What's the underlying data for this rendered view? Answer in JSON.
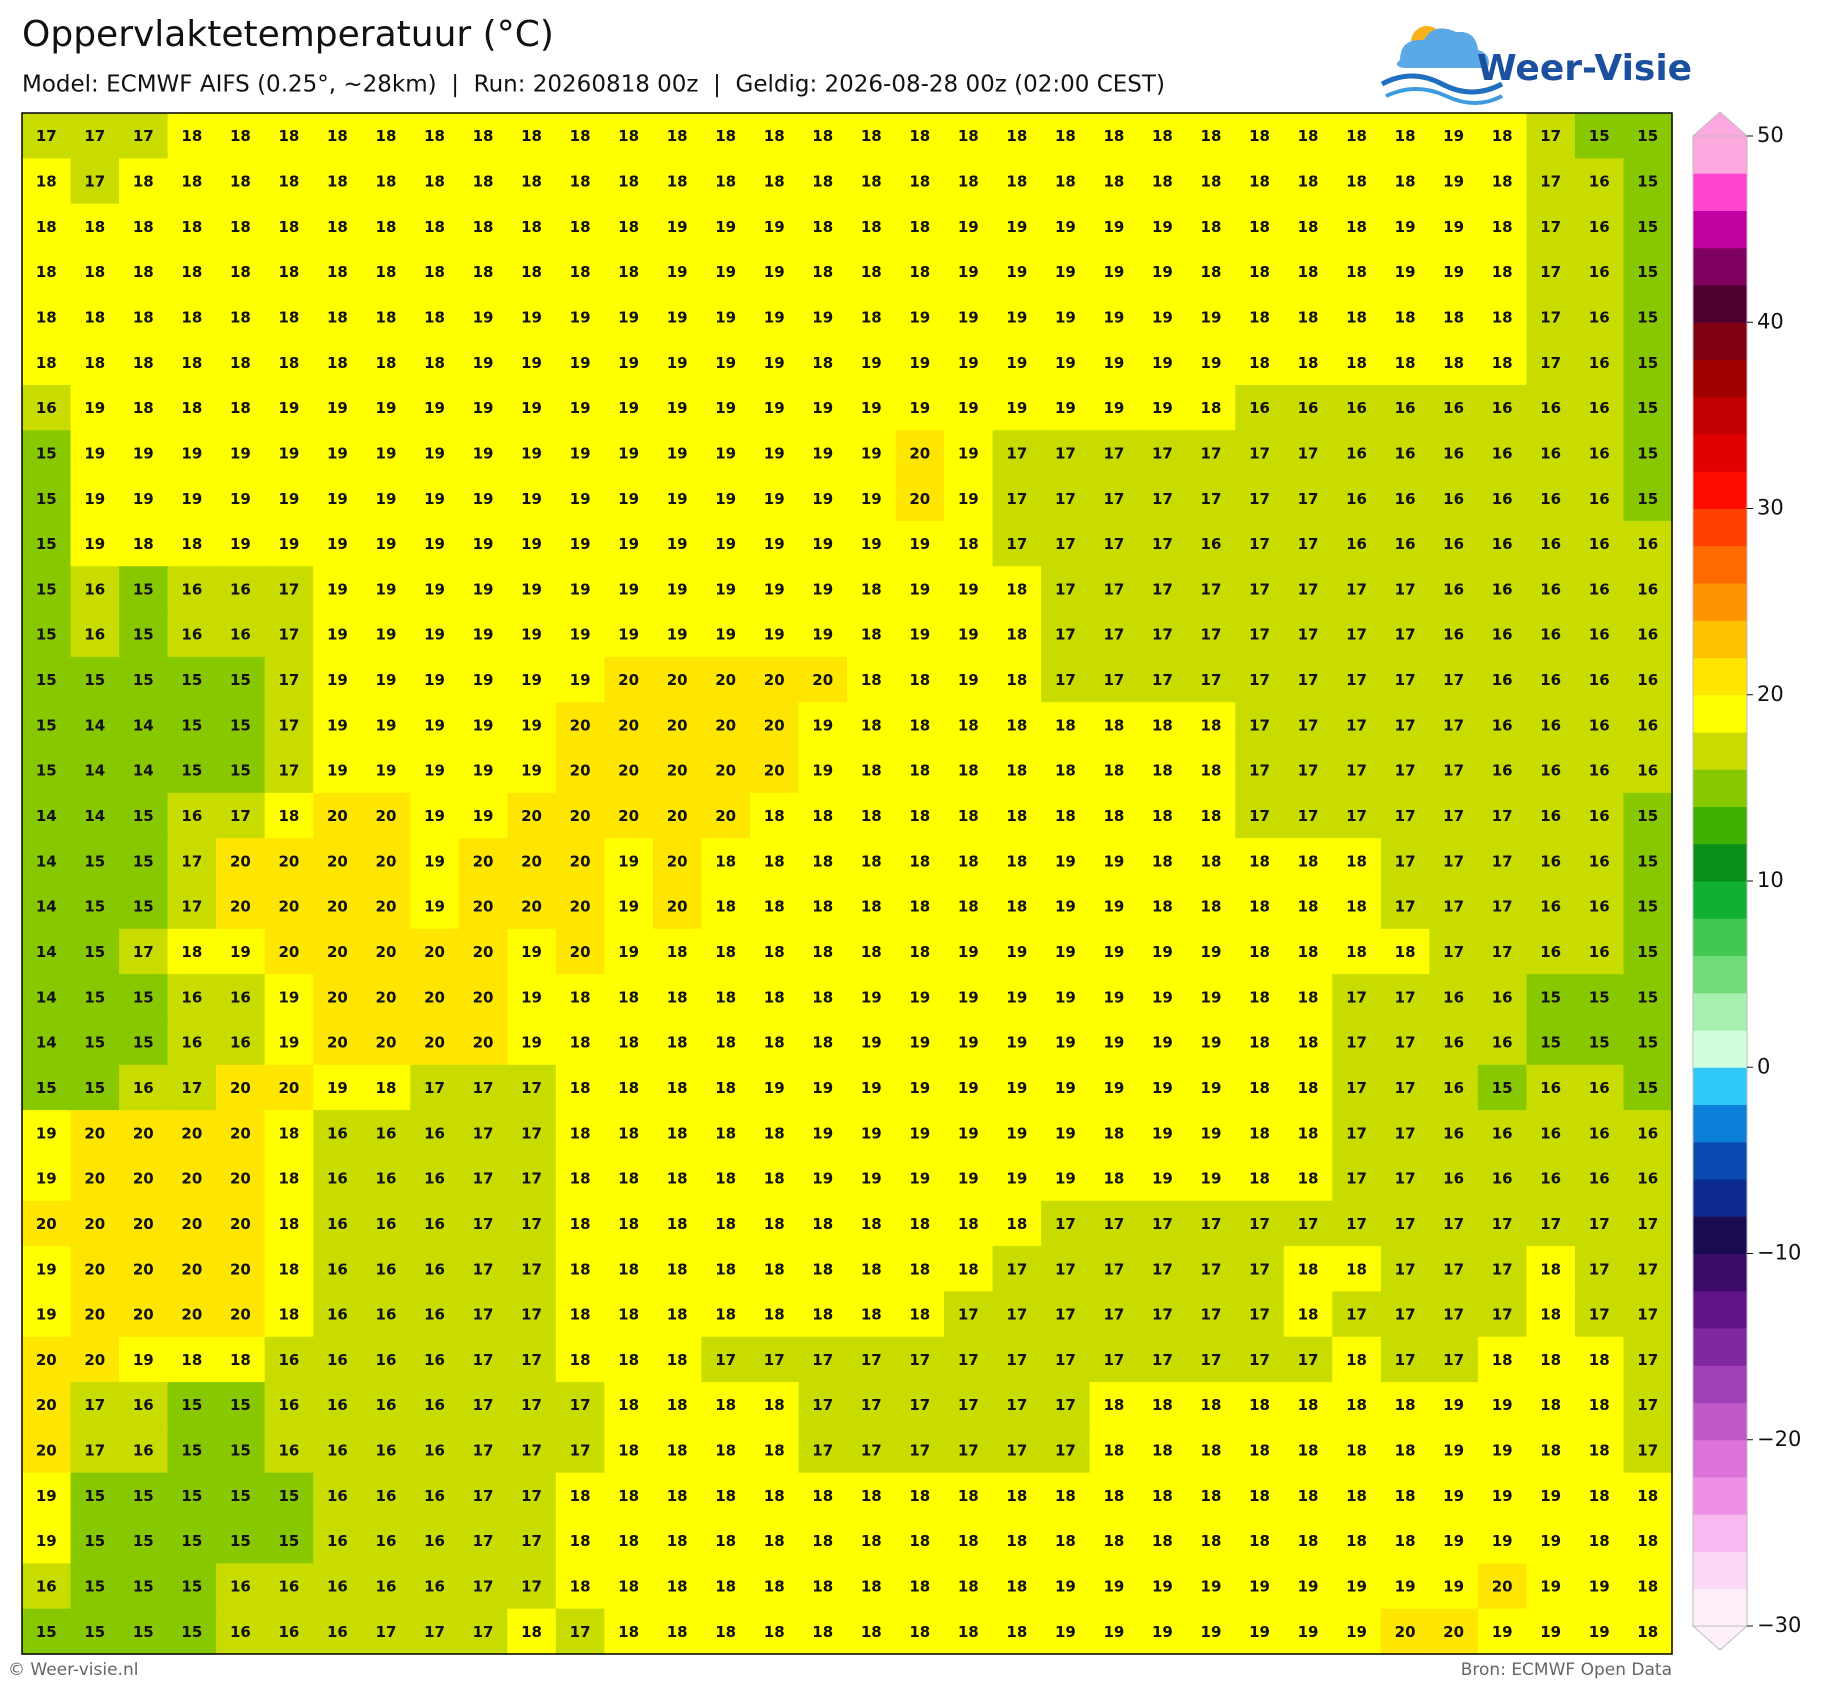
{
  "chart_data": {
    "type": "grid",
    "title": "Oppervlaktetemperatuur (°C)",
    "subtitle": "Model: ECMWF AIFS (0.25°, ~28km)  |  Run: 20260818 00z  |  Geldig: 2026-08-28 00z (02:00 CEST)",
    "logo_text": "Weer-Visie",
    "footer_left": "© Weer-visie.nl",
    "footer_right": "Bron: ECMWF Open Data",
    "rows": [
      [
        17,
        17,
        17,
        18,
        18,
        18,
        18,
        18,
        18,
        18,
        18,
        18,
        18,
        18,
        18,
        18,
        18,
        18,
        18,
        18,
        18,
        18,
        18,
        18,
        18,
        18,
        18,
        18,
        18,
        19,
        18,
        17,
        15,
        15
      ],
      [
        18,
        17,
        18,
        18,
        18,
        18,
        18,
        18,
        18,
        18,
        18,
        18,
        18,
        18,
        18,
        18,
        18,
        18,
        18,
        18,
        18,
        18,
        18,
        18,
        18,
        18,
        18,
        18,
        18,
        19,
        18,
        17,
        16,
        15
      ],
      [
        18,
        18,
        18,
        18,
        18,
        18,
        18,
        18,
        18,
        18,
        18,
        18,
        18,
        19,
        19,
        19,
        18,
        18,
        18,
        19,
        19,
        19,
        19,
        19,
        18,
        18,
        18,
        18,
        19,
        19,
        18,
        17,
        16,
        15
      ],
      [
        18,
        18,
        18,
        18,
        18,
        18,
        18,
        18,
        18,
        18,
        18,
        18,
        18,
        19,
        19,
        19,
        18,
        18,
        18,
        19,
        19,
        19,
        19,
        19,
        18,
        18,
        18,
        18,
        19,
        19,
        18,
        17,
        16,
        15
      ],
      [
        18,
        18,
        18,
        18,
        18,
        18,
        18,
        18,
        18,
        19,
        19,
        19,
        19,
        19,
        19,
        19,
        19,
        18,
        19,
        19,
        19,
        19,
        19,
        19,
        19,
        18,
        18,
        18,
        18,
        18,
        18,
        17,
        16,
        15
      ],
      [
        18,
        18,
        18,
        18,
        18,
        18,
        18,
        18,
        18,
        19,
        19,
        19,
        19,
        19,
        19,
        19,
        18,
        19,
        19,
        19,
        19,
        19,
        19,
        19,
        19,
        18,
        18,
        18,
        18,
        18,
        18,
        17,
        16,
        15
      ],
      [
        16,
        19,
        18,
        18,
        18,
        19,
        19,
        19,
        19,
        19,
        19,
        19,
        19,
        19,
        19,
        19,
        19,
        19,
        19,
        19,
        19,
        19,
        19,
        19,
        18,
        16,
        16,
        16,
        16,
        16,
        16,
        16,
        16,
        15
      ],
      [
        15,
        19,
        19,
        19,
        19,
        19,
        19,
        19,
        19,
        19,
        19,
        19,
        19,
        19,
        19,
        19,
        19,
        19,
        20,
        19,
        17,
        17,
        17,
        17,
        17,
        17,
        17,
        16,
        16,
        16,
        16,
        16,
        16,
        15
      ],
      [
        15,
        19,
        19,
        19,
        19,
        19,
        19,
        19,
        19,
        19,
        19,
        19,
        19,
        19,
        19,
        19,
        19,
        19,
        20,
        19,
        17,
        17,
        17,
        17,
        17,
        17,
        17,
        16,
        16,
        16,
        16,
        16,
        16,
        15
      ],
      [
        15,
        19,
        18,
        18,
        19,
        19,
        19,
        19,
        19,
        19,
        19,
        19,
        19,
        19,
        19,
        19,
        19,
        19,
        19,
        18,
        17,
        17,
        17,
        17,
        16,
        17,
        17,
        16,
        16,
        16,
        16,
        16,
        16,
        16
      ],
      [
        15,
        16,
        15,
        16,
        16,
        17,
        19,
        19,
        19,
        19,
        19,
        19,
        19,
        19,
        19,
        19,
        19,
        18,
        19,
        19,
        18,
        17,
        17,
        17,
        17,
        17,
        17,
        17,
        17,
        16,
        16,
        16,
        16,
        16
      ],
      [
        15,
        16,
        15,
        16,
        16,
        17,
        19,
        19,
        19,
        19,
        19,
        19,
        19,
        19,
        19,
        19,
        19,
        18,
        19,
        19,
        18,
        17,
        17,
        17,
        17,
        17,
        17,
        17,
        17,
        16,
        16,
        16,
        16,
        16
      ],
      [
        15,
        15,
        15,
        15,
        15,
        17,
        19,
        19,
        19,
        19,
        19,
        19,
        20,
        20,
        20,
        20,
        20,
        18,
        18,
        19,
        18,
        17,
        17,
        17,
        17,
        17,
        17,
        17,
        17,
        17,
        16,
        16,
        16,
        16
      ],
      [
        15,
        14,
        14,
        15,
        15,
        17,
        19,
        19,
        19,
        19,
        19,
        20,
        20,
        20,
        20,
        20,
        19,
        18,
        18,
        18,
        18,
        18,
        18,
        18,
        18,
        17,
        17,
        17,
        17,
        17,
        16,
        16,
        16,
        16
      ],
      [
        15,
        14,
        14,
        15,
        15,
        17,
        19,
        19,
        19,
        19,
        19,
        20,
        20,
        20,
        20,
        20,
        19,
        18,
        18,
        18,
        18,
        18,
        18,
        18,
        18,
        17,
        17,
        17,
        17,
        17,
        16,
        16,
        16,
        16
      ],
      [
        14,
        14,
        15,
        16,
        17,
        18,
        20,
        20,
        19,
        19,
        20,
        20,
        20,
        20,
        20,
        18,
        18,
        18,
        18,
        18,
        18,
        18,
        18,
        18,
        18,
        17,
        17,
        17,
        17,
        17,
        17,
        16,
        16,
        15
      ],
      [
        14,
        15,
        15,
        17,
        20,
        20,
        20,
        20,
        19,
        20,
        20,
        20,
        19,
        20,
        18,
        18,
        18,
        18,
        18,
        18,
        18,
        19,
        19,
        18,
        18,
        18,
        18,
        18,
        17,
        17,
        17,
        16,
        16,
        15
      ],
      [
        14,
        15,
        15,
        17,
        20,
        20,
        20,
        20,
        19,
        20,
        20,
        20,
        19,
        20,
        18,
        18,
        18,
        18,
        18,
        18,
        18,
        19,
        19,
        18,
        18,
        18,
        18,
        18,
        17,
        17,
        17,
        16,
        16,
        15
      ],
      [
        14,
        15,
        17,
        18,
        19,
        20,
        20,
        20,
        20,
        20,
        19,
        20,
        19,
        18,
        18,
        18,
        18,
        18,
        18,
        19,
        19,
        19,
        19,
        19,
        19,
        18,
        18,
        18,
        18,
        17,
        17,
        16,
        16,
        15
      ],
      [
        14,
        15,
        15,
        16,
        16,
        19,
        20,
        20,
        20,
        20,
        19,
        18,
        18,
        18,
        18,
        18,
        18,
        19,
        19,
        19,
        19,
        19,
        19,
        19,
        19,
        18,
        18,
        17,
        17,
        16,
        16,
        15,
        15,
        15
      ],
      [
        14,
        15,
        15,
        16,
        16,
        19,
        20,
        20,
        20,
        20,
        19,
        18,
        18,
        18,
        18,
        18,
        18,
        19,
        19,
        19,
        19,
        19,
        19,
        19,
        19,
        18,
        18,
        17,
        17,
        16,
        16,
        15,
        15,
        15
      ],
      [
        15,
        15,
        16,
        17,
        20,
        20,
        19,
        18,
        17,
        17,
        17,
        18,
        18,
        18,
        18,
        19,
        19,
        19,
        19,
        19,
        19,
        19,
        19,
        19,
        19,
        18,
        18,
        17,
        17,
        16,
        15,
        16,
        16,
        15
      ],
      [
        19,
        20,
        20,
        20,
        20,
        18,
        16,
        16,
        16,
        17,
        17,
        18,
        18,
        18,
        18,
        18,
        19,
        19,
        19,
        19,
        19,
        19,
        18,
        19,
        19,
        18,
        18,
        17,
        17,
        16,
        16,
        16,
        16,
        16
      ],
      [
        19,
        20,
        20,
        20,
        20,
        18,
        16,
        16,
        16,
        17,
        17,
        18,
        18,
        18,
        18,
        18,
        19,
        19,
        19,
        19,
        19,
        19,
        18,
        19,
        19,
        18,
        18,
        17,
        17,
        16,
        16,
        16,
        16,
        16
      ],
      [
        20,
        20,
        20,
        20,
        20,
        18,
        16,
        16,
        16,
        17,
        17,
        18,
        18,
        18,
        18,
        18,
        18,
        18,
        18,
        18,
        18,
        17,
        17,
        17,
        17,
        17,
        17,
        17,
        17,
        17,
        17,
        17,
        17,
        17
      ],
      [
        19,
        20,
        20,
        20,
        20,
        18,
        16,
        16,
        16,
        17,
        17,
        18,
        18,
        18,
        18,
        18,
        18,
        18,
        18,
        18,
        17,
        17,
        17,
        17,
        17,
        17,
        18,
        18,
        17,
        17,
        17,
        18,
        17,
        17
      ],
      [
        19,
        20,
        20,
        20,
        20,
        18,
        16,
        16,
        16,
        17,
        17,
        18,
        18,
        18,
        18,
        18,
        18,
        18,
        18,
        17,
        17,
        17,
        17,
        17,
        17,
        17,
        18,
        17,
        17,
        17,
        17,
        18,
        17,
        17
      ],
      [
        20,
        20,
        19,
        18,
        18,
        16,
        16,
        16,
        16,
        17,
        17,
        18,
        18,
        18,
        17,
        17,
        17,
        17,
        17,
        17,
        17,
        17,
        17,
        17,
        17,
        17,
        17,
        18,
        17,
        17,
        18,
        18,
        18,
        17
      ],
      [
        20,
        17,
        16,
        15,
        15,
        16,
        16,
        16,
        16,
        17,
        17,
        17,
        18,
        18,
        18,
        18,
        17,
        17,
        17,
        17,
        17,
        17,
        18,
        18,
        18,
        18,
        18,
        18,
        18,
        19,
        19,
        18,
        18,
        17
      ],
      [
        20,
        17,
        16,
        15,
        15,
        16,
        16,
        16,
        16,
        17,
        17,
        17,
        18,
        18,
        18,
        18,
        17,
        17,
        17,
        17,
        17,
        17,
        18,
        18,
        18,
        18,
        18,
        18,
        18,
        19,
        19,
        18,
        18,
        17
      ],
      [
        19,
        15,
        15,
        15,
        15,
        15,
        16,
        16,
        16,
        17,
        17,
        18,
        18,
        18,
        18,
        18,
        18,
        18,
        18,
        18,
        18,
        18,
        18,
        18,
        18,
        18,
        18,
        18,
        18,
        19,
        19,
        19,
        18,
        18
      ],
      [
        19,
        15,
        15,
        15,
        15,
        15,
        16,
        16,
        16,
        17,
        17,
        18,
        18,
        18,
        18,
        18,
        18,
        18,
        18,
        18,
        18,
        18,
        18,
        18,
        18,
        18,
        18,
        18,
        18,
        19,
        19,
        19,
        18,
        18
      ],
      [
        16,
        15,
        15,
        15,
        16,
        16,
        16,
        16,
        16,
        17,
        17,
        18,
        18,
        18,
        18,
        18,
        18,
        18,
        18,
        18,
        18,
        19,
        19,
        19,
        19,
        19,
        19,
        19,
        19,
        19,
        20,
        19,
        19,
        18
      ],
      [
        15,
        15,
        15,
        15,
        16,
        16,
        16,
        17,
        17,
        17,
        18,
        17,
        18,
        18,
        18,
        18,
        18,
        18,
        18,
        18,
        18,
        19,
        19,
        19,
        19,
        19,
        19,
        19,
        20,
        20,
        19,
        19,
        19,
        18
      ]
    ],
    "colorbar": {
      "lim": [
        -30,
        50
      ],
      "ticks": [
        {
          "value": -30,
          "label": "−30"
        },
        {
          "value": -20,
          "label": "−20"
        },
        {
          "value": -10,
          "label": "−10"
        },
        0,
        10,
        20,
        30,
        40,
        50
      ],
      "colors": [
        "#fdf0fb",
        "#fcdaf6",
        "#f8b8f0",
        "#ee90e6",
        "#dc72da",
        "#c058c8",
        "#a040b4",
        "#8028a0",
        "#601488",
        "#3a0c68",
        "#1a0a50",
        "#0c2a90",
        "#0a4ab0",
        "#0a80d8",
        "#30c8f8",
        "#d0ffe0",
        "#a8f0b0",
        "#70dc78",
        "#40c850",
        "#10b030",
        "#089018",
        "#40b000",
        "#88c800",
        "#c8dc00",
        "#ffff00",
        "#ffe600",
        "#ffc000",
        "#ff9400",
        "#ff6a00",
        "#ff4000",
        "#ff0c00",
        "#e00000",
        "#c00000",
        "#a00000",
        "#800010",
        "#500030",
        "#800060",
        "#c000a0",
        "#ff44d0",
        "#ffa8e0"
      ]
    }
  }
}
